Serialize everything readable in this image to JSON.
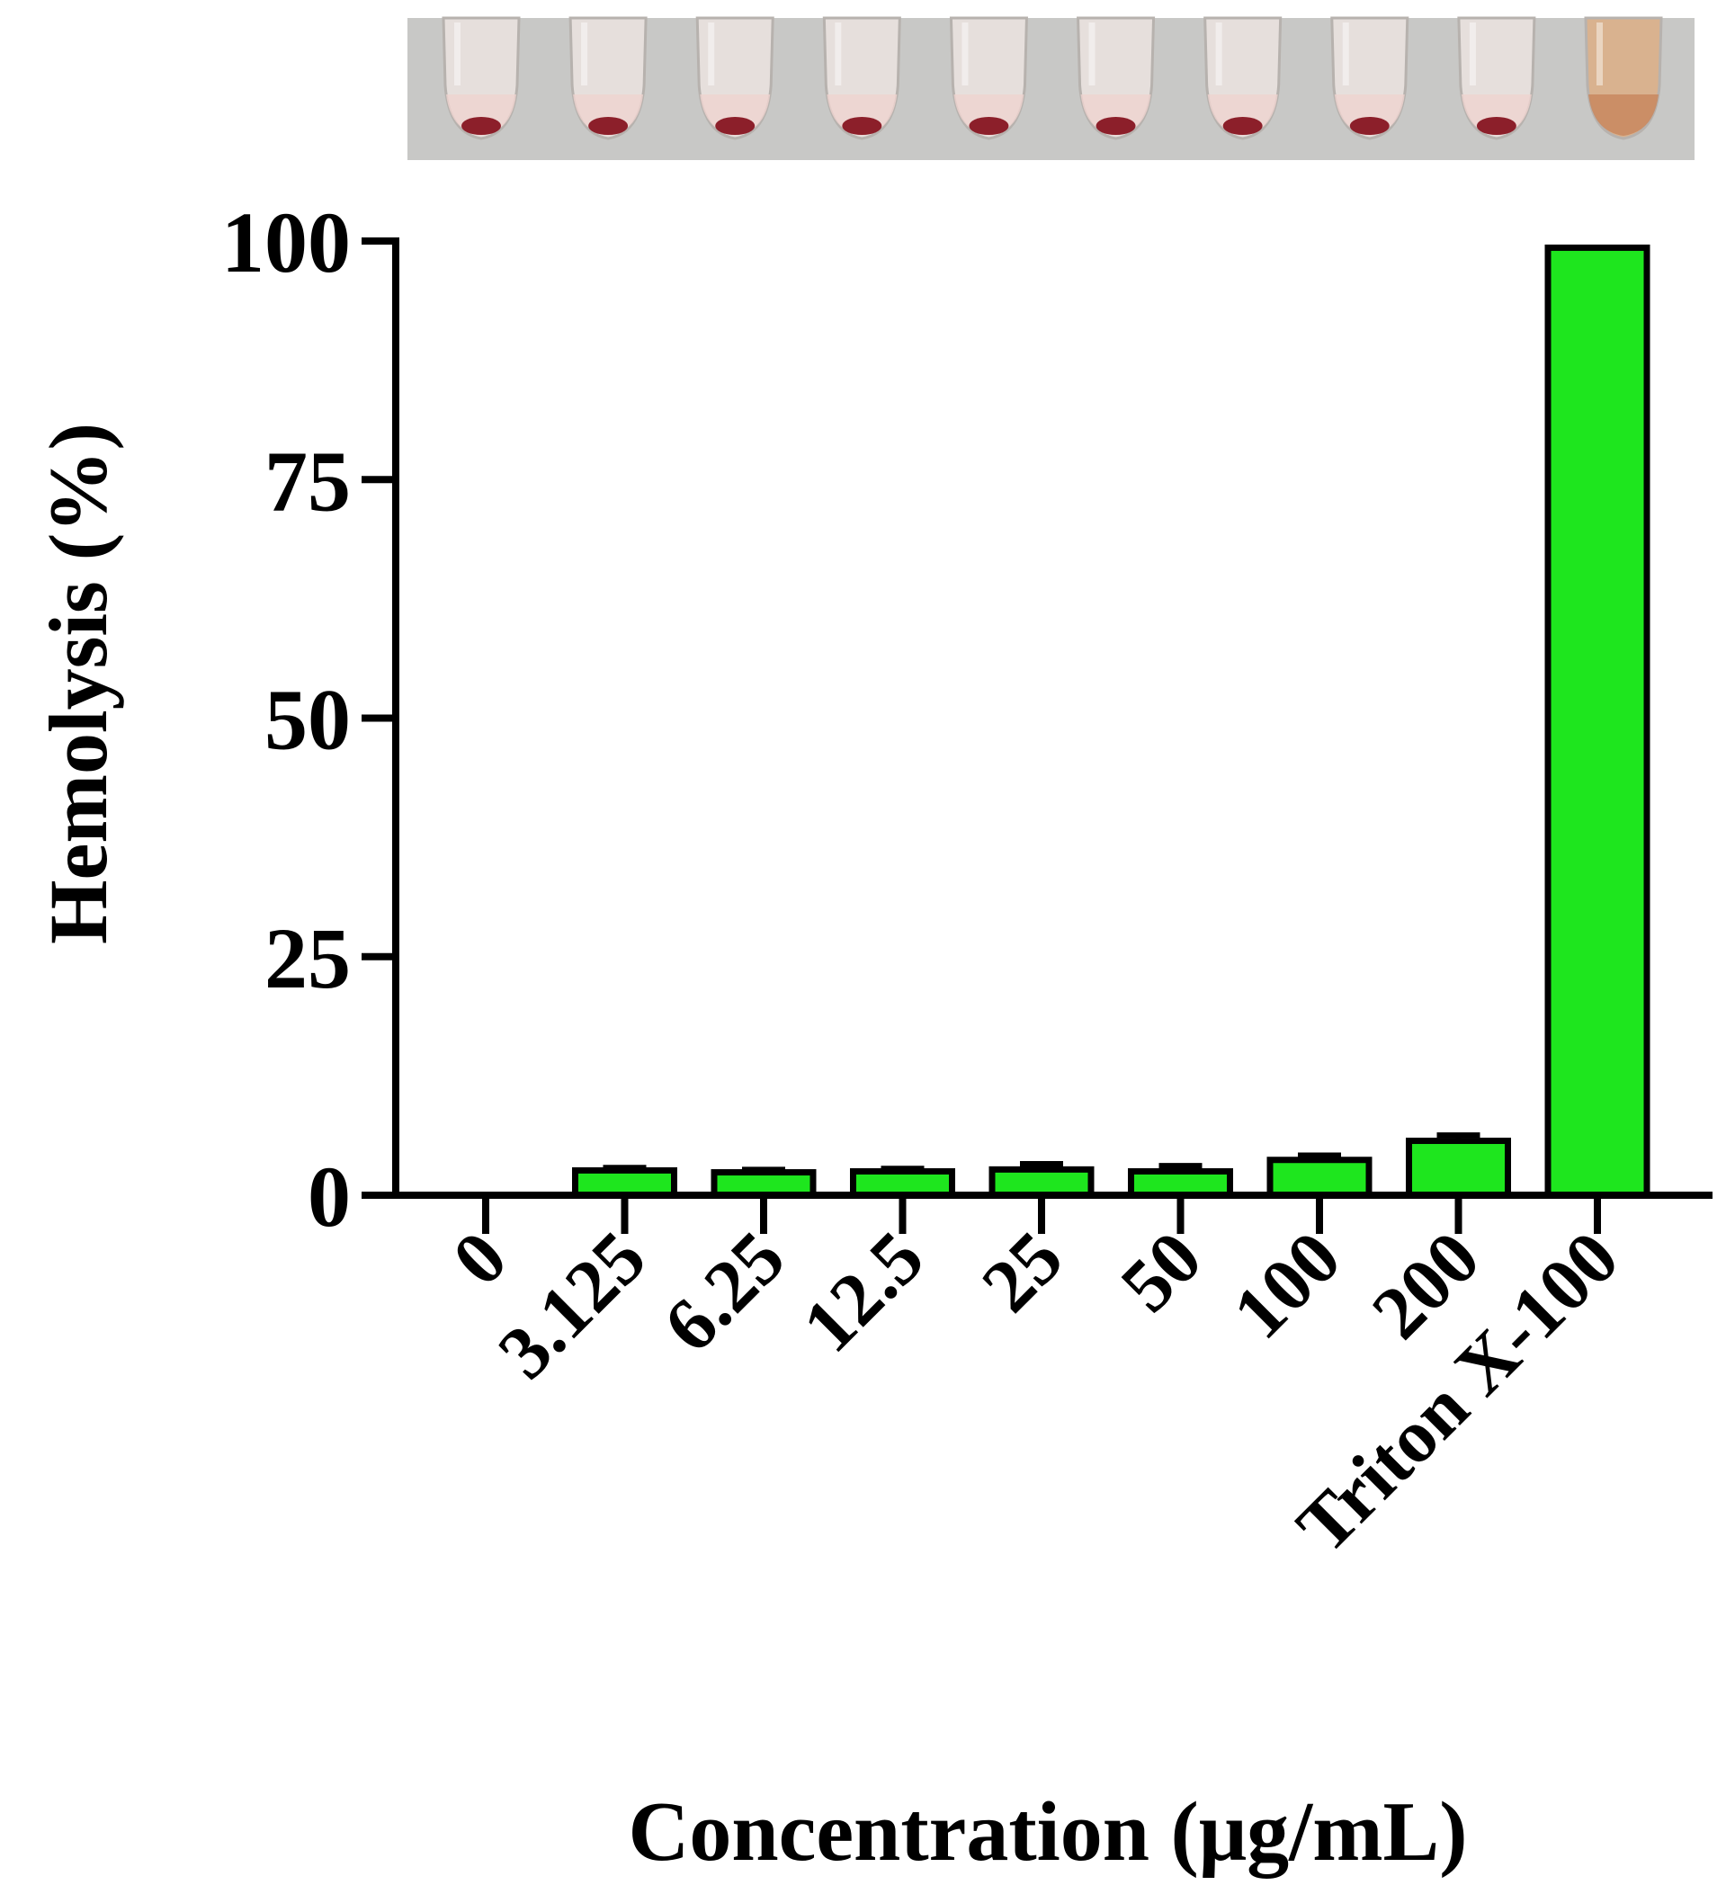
{
  "photo": {
    "name": "hemolysis-tubes-photo",
    "tube_count": 10,
    "background_color": "#c8c8c6",
    "pellet_color": "#8c1f2a",
    "lysed_color": "#c98a62"
  },
  "chart_data": {
    "type": "bar",
    "title": "",
    "xlabel": "Concentration (μg/mL)",
    "ylabel": "Hemolysis (%)",
    "ylim": [
      0,
      100
    ],
    "yticks": [
      0,
      25,
      50,
      75,
      100
    ],
    "grid": false,
    "legend": "none",
    "categories": [
      "0",
      "3.125",
      "6.25",
      "12.5",
      "25",
      "50",
      "100",
      "200",
      "Triton X-100"
    ],
    "series": [
      {
        "values": [
          0,
          2.6,
          2.4,
          2.5,
          2.7,
          2.5,
          3.7,
          5.7,
          99.3
        ],
        "errors": [
          0,
          0.3,
          0.3,
          0.3,
          0.6,
          0.6,
          0.5,
          0.6,
          0
        ],
        "color": "#1ee61e"
      }
    ]
  }
}
